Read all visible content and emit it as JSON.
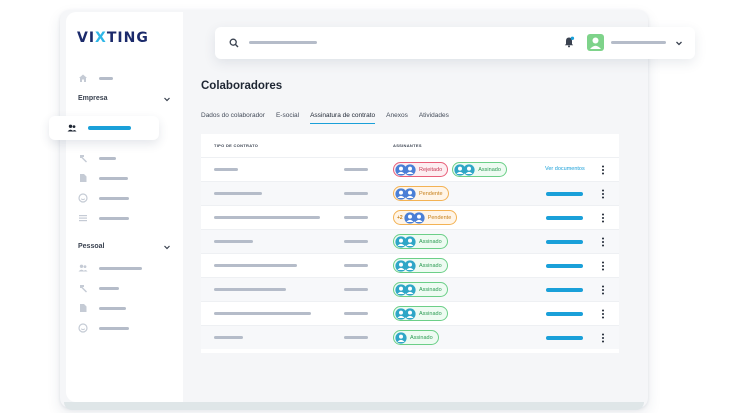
{
  "brand": {
    "logo_a": "VI",
    "logo_x": "X",
    "logo_b": "TING"
  },
  "sidebar": {
    "sections": [
      {
        "label": "Empresa"
      },
      {
        "label": "Pessoal"
      }
    ],
    "icons": [
      "home-icon",
      "users-icon",
      "hammer-icon",
      "file-icon",
      "smile-icon",
      "list-icon"
    ]
  },
  "header": {
    "search_icon": "search-icon",
    "notification_icon": "bell-icon"
  },
  "page": {
    "title": "Colaboradores",
    "tabs": [
      "Dados do colaborador",
      "E-social",
      "Assinatura de contrato",
      "Anexos",
      "Atividades"
    ],
    "active_tab": "Assinatura de contrato"
  },
  "table": {
    "columns": [
      "TIPO DE CONTRATO",
      "ASSINANTES"
    ],
    "rows": [
      {
        "badges": [
          {
            "status": "Rejeitado",
            "kind": "rej"
          },
          {
            "status": "Assinado",
            "kind": "ass"
          }
        ],
        "action": "Ver documentos"
      },
      {
        "badges": [
          {
            "status": "Pendente",
            "kind": "pen"
          }
        ]
      },
      {
        "badges": [
          {
            "status": "Pendente",
            "kind": "pen",
            "extra": "+2"
          }
        ]
      },
      {
        "badges": [
          {
            "status": "Assinado",
            "kind": "ass"
          }
        ]
      },
      {
        "badges": [
          {
            "status": "Assinado",
            "kind": "ass"
          }
        ]
      },
      {
        "badges": [
          {
            "status": "Assinado",
            "kind": "ass"
          }
        ]
      },
      {
        "badges": [
          {
            "status": "Assinado",
            "kind": "ass"
          }
        ]
      },
      {
        "badges": [
          {
            "status": "Assinado",
            "kind": "ass",
            "single": true
          }
        ]
      }
    ]
  },
  "colors": {
    "accent": "#1aa0d9",
    "logo_dark": "#1b2a6b",
    "logo_light": "#2fb7e8",
    "rejected": "#e8607a",
    "signed": "#6ccf88",
    "pending": "#f3b254"
  }
}
